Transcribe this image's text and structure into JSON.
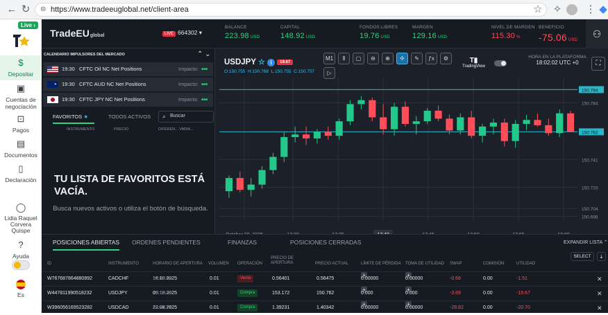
{
  "browser": {
    "url": "https://www.tradeeuglobal.net/client-area"
  },
  "sidebar": {
    "live": "Live",
    "items": [
      {
        "label": "Depositar",
        "icon": "dollar-icon"
      },
      {
        "label": "Cuentas de negociación",
        "icon": "wallet-icon"
      },
      {
        "label": "Pagos",
        "icon": "payments-icon"
      },
      {
        "label": "Documentos",
        "icon": "id-card-icon"
      },
      {
        "label": "Declaración",
        "icon": "document-icon"
      }
    ],
    "user": "Lidia Raquel Corvera Quispe",
    "help": "Ayuda",
    "lang": "Es"
  },
  "header": {
    "logo": "TradeEU",
    "logo_sub": "global",
    "live_label": "LIVE",
    "account_id": "664302",
    "stats": [
      {
        "label": "BALANCE",
        "value": "223.98",
        "unit": "USD"
      },
      {
        "label": "CAPITAL",
        "value": "148.92",
        "unit": "USD"
      },
      {
        "label": "FONDOS LIBRES",
        "value": "19.76",
        "unit": "USD"
      },
      {
        "label": "MARGEN",
        "value": "129.16",
        "unit": "USD"
      },
      {
        "label": "NIVEL DE MARGEN",
        "value": "115.30",
        "unit": "%"
      },
      {
        "label": "BENEFICIO",
        "value": "-75.06",
        "unit": "USD"
      }
    ]
  },
  "calendar": {
    "title": "CALENDARIO IMPULSORES DEL MERCADO",
    "rows": [
      {
        "time": "19:30",
        "event": "CFTC Oil NC Net Positions",
        "impact": "Impacto:"
      },
      {
        "time": "19:30",
        "event": "CFTC AUD NC Net Positions",
        "impact": "Impacto:"
      },
      {
        "time": "19:30",
        "event": "CFTC JPY NC Net Positions",
        "impact": "Impacto:"
      }
    ]
  },
  "watchlist": {
    "tab_fav": "FAVORITOS",
    "tab_all": "TODOS ACTIVOS",
    "search_placeholder": "Buscar",
    "cols": [
      "INSTRUMENTO",
      "PRECIO",
      "DIFEREN... VARIA..."
    ],
    "empty_title": "TU LISTA DE FAVORITOS ESTÁ VACÍA.",
    "empty_sub": "Busca nuevos activos o utiliza el botón de búsqueda."
  },
  "chart": {
    "symbol": "USDJPY",
    "badge": "19.67",
    "ohlc": {
      "o": "150.755",
      "h": "150.768",
      "l": "150.755",
      "c": "150.757"
    },
    "brand": "TradingView",
    "clock_label": "HORA EN LA PLATAFORMA",
    "clock": "18:02:02 UTC +0",
    "toolbar": [
      "M1",
      "bars",
      "candles",
      "zoom-out",
      "zoom-in",
      "crosshair",
      "pencil",
      "fx",
      "settings",
      "play"
    ]
  },
  "chart_data": {
    "type": "candlestick",
    "y_ticks": [
      "150.794",
      "150.784",
      "150.762",
      "150.741",
      "150.720",
      "150.704",
      "150.698"
    ],
    "x_ticks": [
      "October 20, 2025",
      "17:30",
      "17:35",
      "17:40",
      "17:45",
      "17:50",
      "17:55",
      "18:00"
    ],
    "ylim": [
      150.694,
      150.8
    ],
    "upper_line": 150.794,
    "current_price": 150.762,
    "candles": [
      [
        150.717,
        150.729,
        150.712,
        150.727
      ],
      [
        150.727,
        150.732,
        150.716,
        150.718
      ],
      [
        150.718,
        150.727,
        150.713,
        150.722
      ],
      [
        150.722,
        150.736,
        150.719,
        150.733
      ],
      [
        150.733,
        150.746,
        150.73,
        150.743
      ],
      [
        150.743,
        150.762,
        150.739,
        150.758
      ],
      [
        150.758,
        150.766,
        150.754,
        150.76
      ],
      [
        150.76,
        150.766,
        150.752,
        150.757
      ],
      [
        150.757,
        150.764,
        150.753,
        150.762
      ],
      [
        150.762,
        150.766,
        150.756,
        150.759
      ],
      [
        150.759,
        150.772,
        150.756,
        150.77
      ],
      [
        150.77,
        150.786,
        150.767,
        150.783
      ],
      [
        150.783,
        150.789,
        150.779,
        150.786
      ],
      [
        150.786,
        150.788,
        150.77,
        150.773
      ],
      [
        150.773,
        150.783,
        150.76,
        150.764
      ],
      [
        150.764,
        150.784,
        150.759,
        150.781
      ],
      [
        150.781,
        150.785,
        150.766,
        150.768
      ],
      [
        150.768,
        150.774,
        150.76,
        150.77
      ],
      [
        150.77,
        150.78,
        150.768,
        150.778
      ],
      [
        150.778,
        150.782,
        150.77,
        150.772
      ],
      [
        150.772,
        150.775,
        150.76,
        150.763
      ],
      [
        150.763,
        150.776,
        150.76,
        150.773
      ],
      [
        150.773,
        150.778,
        150.757,
        150.759
      ],
      [
        150.759,
        150.768,
        150.754,
        150.766
      ],
      [
        150.766,
        150.772,
        150.76,
        150.769
      ],
      [
        150.769,
        150.772,
        150.751,
        150.755
      ],
      [
        150.755,
        150.771,
        150.75,
        150.768
      ],
      [
        150.768,
        150.775,
        150.763,
        150.771
      ],
      [
        150.771,
        150.776,
        150.766,
        150.767
      ],
      [
        150.767,
        150.772,
        150.759,
        150.761
      ],
      [
        150.761,
        150.779,
        150.758,
        150.776
      ],
      [
        150.776,
        150.778,
        150.762,
        150.762
      ]
    ]
  },
  "positions": {
    "tabs": [
      "POSICIONES ABIERTAS",
      "ORDENES PENDIENTES",
      "FINANZAS",
      "POSICIONES CERRADAS"
    ],
    "expand": "EXPANDIR LISTA",
    "select": "SELECT",
    "cols": [
      "ID",
      "INSTRUMENTO",
      "HORARIO DE APERTURA",
      "VOLUMEN",
      "OPERACIÓN",
      "PRECIO DE APERTURA",
      "PRECIO ACTUAL",
      "LÍMITE DE PÉRDIDA",
      "TOMA DE UTILIDAD",
      "SWAP",
      "COMISIÓN",
      "UTILIDAD"
    ],
    "rows": [
      {
        "id": "W767687864880892",
        "inst": "CADCHF",
        "date": "16.10.2025",
        "time": "19:09:52",
        "vol": "0.01",
        "op": "Venta",
        "open": "0.56401",
        "cur": "0.56475",
        "sl": "0.00000",
        "tp": "0.00000",
        "swap": "-0.68",
        "com": "0.00",
        "pl": "-1.51"
      },
      {
        "id": "W447811990518232",
        "inst": "USDJPY",
        "date": "09.10.2025",
        "time": "19:18:39",
        "vol": "0.01",
        "op": "Compra",
        "open": "153.172",
        "cur": "150.762",
        "sl": "0.000",
        "tp": "0.000",
        "swap": "-3.69",
        "com": "0.00",
        "pl": "-19.67"
      },
      {
        "id": "W396056169523282",
        "inst": "USDCAD",
        "date": "22.08.2025",
        "time": "13:27:14",
        "vol": "0.01",
        "op": "Compra",
        "open": "1.39231",
        "cur": "1.40342",
        "sl": "0.00000",
        "tp": "0.00000",
        "swap": "-28.82",
        "com": "0.00",
        "pl": "-20.70"
      }
    ]
  }
}
